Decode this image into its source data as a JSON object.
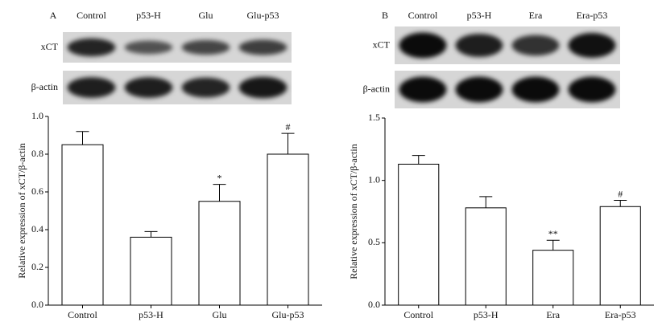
{
  "chart_data": [
    {
      "type": "bar",
      "panel": "A",
      "blot": {
        "lanes": [
          "Control",
          "p53-H",
          "Glu",
          "Glu-p53"
        ],
        "rows": [
          "xCT",
          "β-actin"
        ]
      },
      "ylabel": "Relative expression of xCT/β-actin",
      "categories": [
        "Control",
        "p53-H",
        "Glu",
        "Glu-p53"
      ],
      "values": [
        0.85,
        0.36,
        0.55,
        0.8
      ],
      "errors": [
        0.07,
        0.03,
        0.09,
        0.11
      ],
      "annotations": [
        null,
        null,
        "*",
        "#"
      ],
      "color": "#ffffff",
      "ylim": [
        0,
        1.0
      ],
      "yticks": [
        {
          "value": 0,
          "label": "0.0"
        },
        0.2,
        0.4,
        0.6,
        0.8,
        {
          "value": 1.0,
          "label": "1.0"
        }
      ]
    },
    {
      "type": "bar",
      "panel": "B",
      "blot": {
        "lanes": [
          "Control",
          "p53-H",
          "Era",
          "Era-p53"
        ],
        "rows": [
          "xCT",
          "β-actin"
        ]
      },
      "ylabel": "Relative expression of xCT/β-actin",
      "categories": [
        "Control",
        "p53-H",
        "Era",
        "Era-p53"
      ],
      "values": [
        1.13,
        0.78,
        0.44,
        0.79
      ],
      "errors": [
        0.07,
        0.09,
        0.08,
        0.05
      ],
      "annotations": [
        null,
        null,
        "**",
        "#"
      ],
      "color": "#ffffff",
      "ylim": [
        0,
        1.5
      ],
      "yticks": [
        {
          "value": 0,
          "label": "0.0"
        },
        0.5,
        {
          "value": 1.0,
          "label": "1.0"
        },
        1.5
      ]
    }
  ]
}
